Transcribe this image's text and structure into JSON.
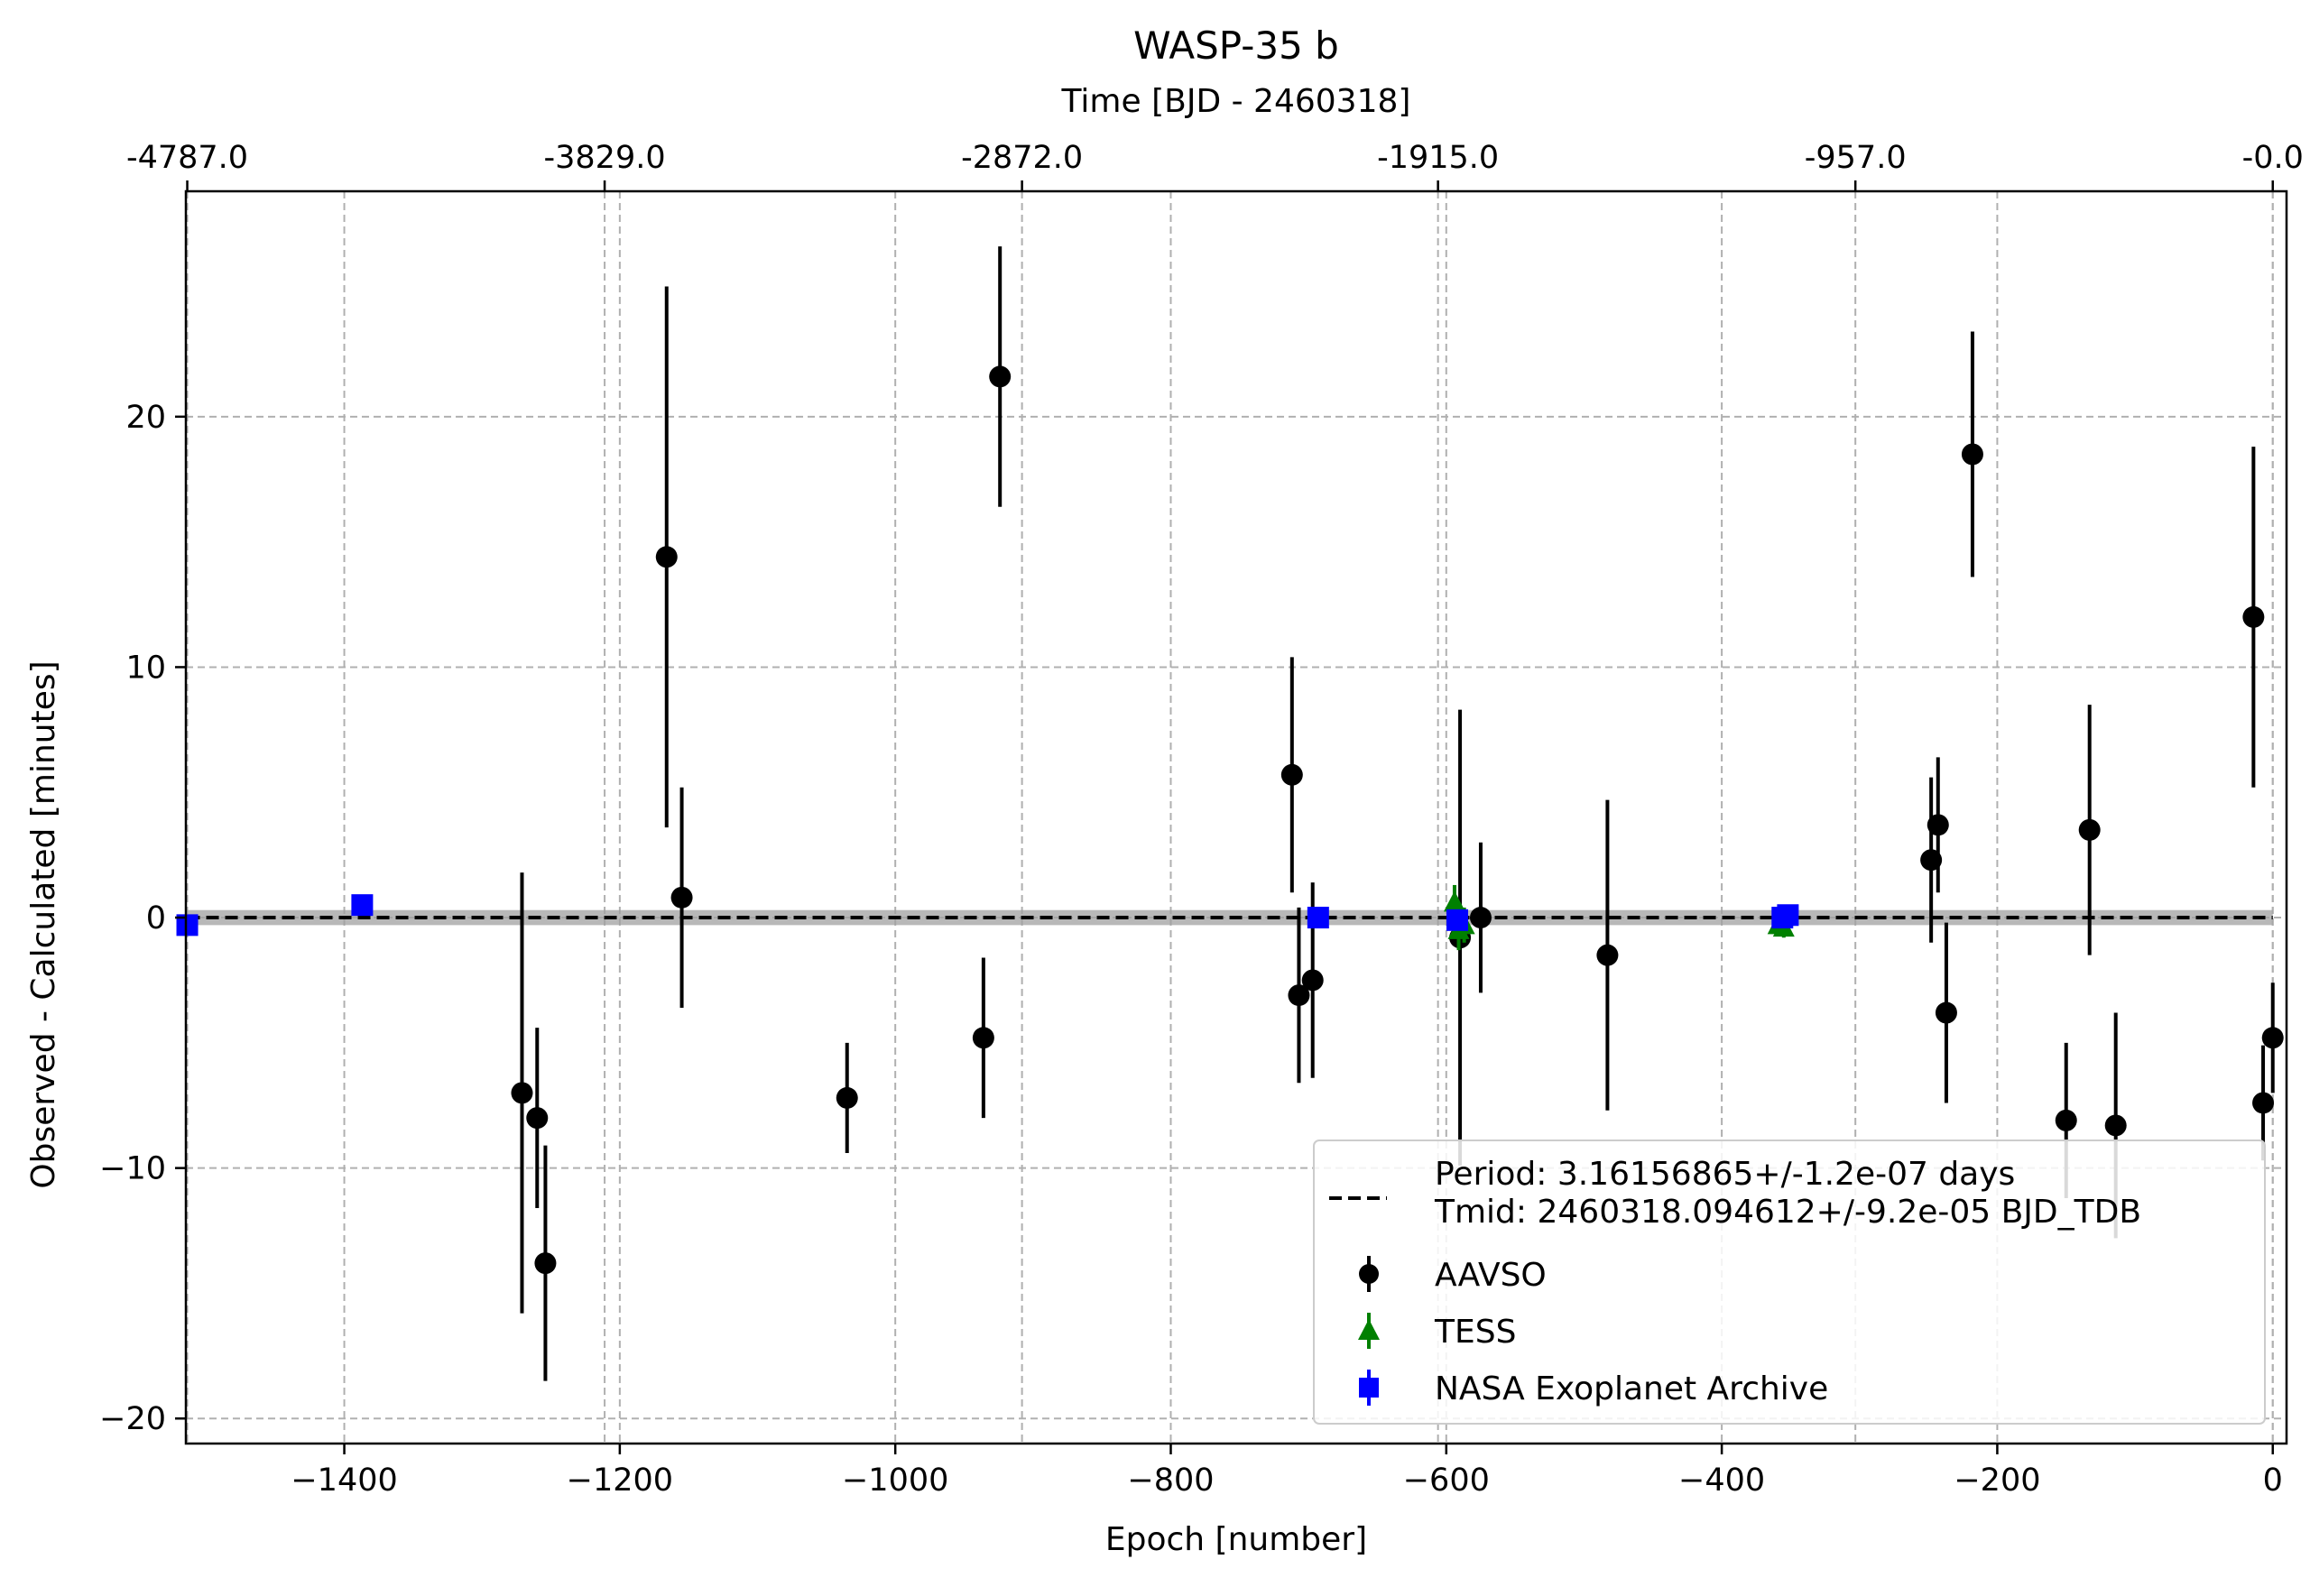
{
  "chart_data": {
    "type": "scatter",
    "title": "WASP-35 b",
    "xlabel": "Epoch [number]",
    "ylabel": "Observed - Calculated [minutes]",
    "x2label": "Time [BJD - 2460318]",
    "xlim": [
      -1515,
      10
    ],
    "ylim": [
      -21,
      29
    ],
    "xticks": [
      -1400,
      -1200,
      -1000,
      -800,
      -600,
      -400,
      -200,
      0
    ],
    "xtick_labels": [
      "−1400",
      "−1200",
      "−1000",
      "−800",
      "−600",
      "−400",
      "−200",
      "0"
    ],
    "yticks": [
      -20,
      -10,
      0,
      10,
      20
    ],
    "ytick_labels": [
      "−20",
      "−10",
      "0",
      "10",
      "20"
    ],
    "x2ticks": [
      -1514,
      -1211,
      -908,
      -606,
      -303,
      0
    ],
    "x2tick_labels": [
      "-4787.0",
      "-3829.0",
      "-2872.0",
      "-1915.0",
      "-957.0",
      "-0.0"
    ],
    "grid": true,
    "fit": {
      "x": [
        -1514,
        0
      ],
      "y": [
        0,
        0
      ],
      "band": 0.3,
      "label_lines": [
        "Period: 3.16156865+/-1.2e-07 days",
        "Tmid: 2460318.094612+/-9.2e-05 BJD_TDB"
      ]
    },
    "legend_position": "lower right",
    "series": [
      {
        "name": "AAVSO",
        "marker": "circle",
        "color": "#000000",
        "points": [
          {
            "x": -1271,
            "y": -7.0,
            "err": 8.8
          },
          {
            "x": -1260,
            "y": -8.0,
            "err": 3.6
          },
          {
            "x": -1254,
            "y": -13.8,
            "err": 4.7
          },
          {
            "x": -1166,
            "y": 14.4,
            "err": 10.8
          },
          {
            "x": -1155,
            "y": 0.8,
            "err": 4.4
          },
          {
            "x": -1035,
            "y": -7.2,
            "err": 2.2
          },
          {
            "x": -936,
            "y": -4.8,
            "err": 3.2
          },
          {
            "x": -924,
            "y": 21.6,
            "err": 5.2
          },
          {
            "x": -712,
            "y": 5.7,
            "err": 4.7
          },
          {
            "x": -707,
            "y": -3.1,
            "err": 3.5
          },
          {
            "x": -697,
            "y": -2.5,
            "err": 3.9
          },
          {
            "x": -590,
            "y": -0.8,
            "err": 9.1
          },
          {
            "x": -575,
            "y": 0.0,
            "err": 3.0
          },
          {
            "x": -483,
            "y": -1.5,
            "err": 6.2
          },
          {
            "x": -248,
            "y": 2.3,
            "err": 3.3
          },
          {
            "x": -243,
            "y": 3.7,
            "err": 2.7
          },
          {
            "x": -237,
            "y": -3.8,
            "err": 3.6
          },
          {
            "x": -218,
            "y": 18.5,
            "err": 4.9
          },
          {
            "x": -150,
            "y": -8.1,
            "err": 3.1
          },
          {
            "x": -133,
            "y": 3.5,
            "err": 5.0
          },
          {
            "x": -114,
            "y": -8.3,
            "err": 4.5
          },
          {
            "x": -14,
            "y": 12.0,
            "err": 6.8
          },
          {
            "x": -7,
            "y": -7.4,
            "err": 2.3
          },
          {
            "x": 0,
            "y": -4.8,
            "err": 2.2
          }
        ]
      },
      {
        "name": "TESS",
        "marker": "triangle",
        "color": "#008000",
        "points": [
          {
            "x": -594,
            "y": 0.6,
            "err": 0.7
          },
          {
            "x": -591,
            "y": -0.5,
            "err": 0.8
          },
          {
            "x": -587,
            "y": -0.3,
            "err": 0.7
          },
          {
            "x": -359,
            "y": -0.3,
            "err": 0.4
          },
          {
            "x": -355,
            "y": -0.4,
            "err": 0.4
          }
        ]
      },
      {
        "name": "NASA Exoplanet Archive",
        "marker": "square",
        "color": "#0000ff",
        "points": [
          {
            "x": -1514,
            "y": -0.3,
            "err": 0.2
          },
          {
            "x": -1387,
            "y": 0.5,
            "err": 0.2
          },
          {
            "x": -693,
            "y": 0.0,
            "err": 0.2
          },
          {
            "x": -592,
            "y": -0.1,
            "err": 0.3
          },
          {
            "x": -356,
            "y": 0.0,
            "err": 0.3
          },
          {
            "x": -352,
            "y": 0.1,
            "err": 0.4
          }
        ]
      }
    ]
  }
}
